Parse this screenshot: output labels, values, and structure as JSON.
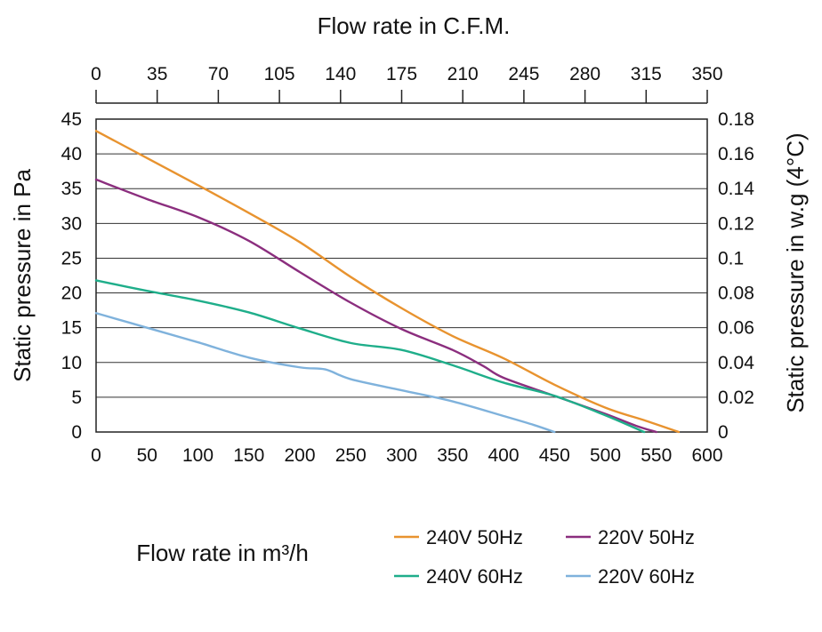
{
  "chart_data": {
    "type": "line",
    "title": "",
    "xlabel": "Flow rate in m³/h",
    "ylabel": "Static pressure in Pa",
    "x2label": "Flow rate in C.F.M.",
    "y2label": "Static pressure in w.g (4°C)",
    "xlim": [
      0,
      600
    ],
    "ylim": [
      0,
      45
    ],
    "x2lim": [
      0,
      350
    ],
    "y2lim": [
      0,
      0.18
    ],
    "xticks": [
      "0",
      "50",
      "100",
      "150",
      "200",
      "250",
      "300",
      "350",
      "400",
      "450",
      "500",
      "550",
      "600"
    ],
    "yticks": [
      "0",
      "5",
      "10",
      "15",
      "20",
      "25",
      "30",
      "35",
      "40",
      "45"
    ],
    "x2ticks": [
      "0",
      "35",
      "70",
      "105",
      "140",
      "175",
      "210",
      "245",
      "280",
      "315",
      "350"
    ],
    "y2ticks": [
      "0",
      "0.02",
      "0.04",
      "0.06",
      "0.08",
      "0.1",
      "0.12",
      "0.14",
      "0.16",
      "0.18"
    ],
    "grid": "horizontal",
    "legend_position": "bottom-right",
    "series": [
      {
        "name": "240V 50Hz",
        "color": "#e8932f",
        "x": [
          0,
          50,
          100,
          150,
          200,
          250,
          300,
          350,
          400,
          450,
          500,
          540,
          572
        ],
        "y": [
          43.3,
          39.4,
          35.5,
          31.5,
          27.3,
          22.3,
          17.8,
          13.8,
          10.6,
          6.8,
          3.5,
          1.6,
          0
        ]
      },
      {
        "name": "220V 50Hz",
        "color": "#8b2e7e",
        "x": [
          0,
          50,
          100,
          150,
          200,
          250,
          300,
          350,
          380,
          400,
          450,
          500,
          530,
          550
        ],
        "y": [
          36.3,
          33.5,
          30.9,
          27.5,
          23.0,
          18.6,
          14.8,
          11.8,
          9.5,
          7.8,
          5.2,
          2.6,
          0.9,
          0
        ]
      },
      {
        "name": "240V 60Hz",
        "color": "#1fae8a",
        "x": [
          0,
          50,
          100,
          150,
          200,
          250,
          300,
          350,
          400,
          450,
          500,
          538
        ],
        "y": [
          21.8,
          20.3,
          18.9,
          17.2,
          14.9,
          12.8,
          11.8,
          9.6,
          7.1,
          5.2,
          2.4,
          0
        ]
      },
      {
        "name": "220V 60Hz",
        "color": "#7fb2dc",
        "x": [
          0,
          50,
          100,
          150,
          200,
          225,
          250,
          300,
          350,
          400,
          430,
          450
        ],
        "y": [
          17.1,
          15.0,
          12.9,
          10.7,
          9.3,
          9.0,
          7.6,
          6.0,
          4.4,
          2.3,
          1.0,
          0
        ]
      }
    ]
  }
}
